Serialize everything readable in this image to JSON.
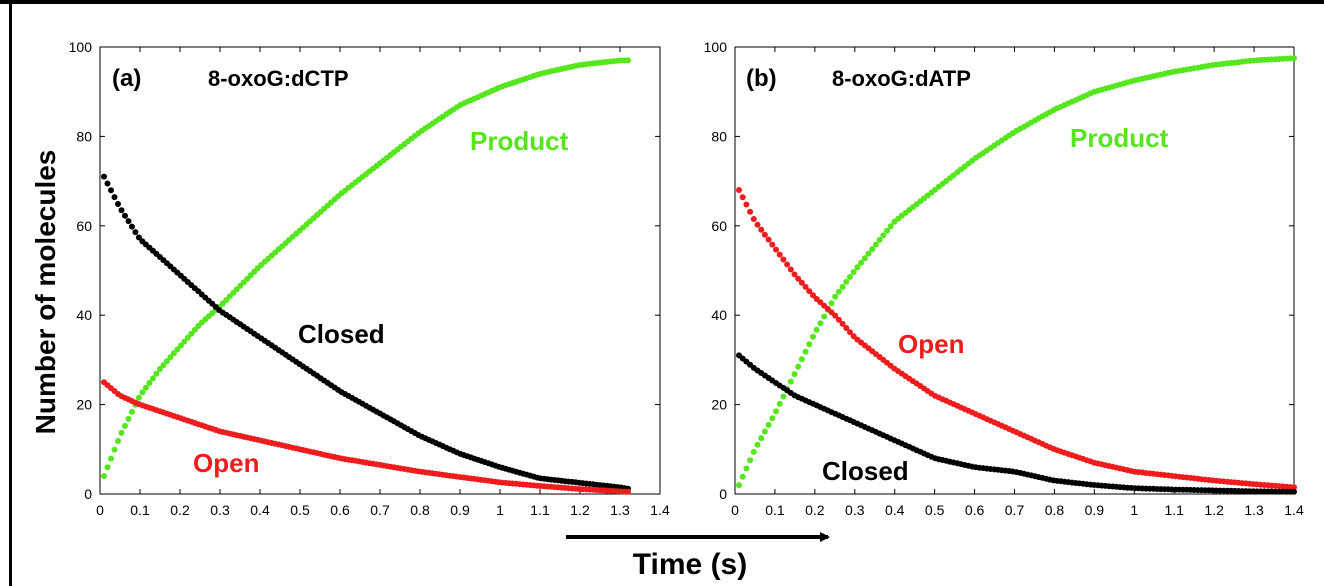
{
  "figure": {
    "ylabel": "Number of molecules",
    "xlabel": "Time (s)"
  },
  "chart_data": [
    {
      "type": "scatter",
      "panel": "(a)",
      "title": "8-oxoG:dCTP",
      "xlim": [
        0,
        1.4
      ],
      "ylim": [
        0,
        100
      ],
      "xticks": [
        "0",
        "0.1",
        "0.2",
        "0.3",
        "0.4",
        "0.5",
        "0.6",
        "0.7",
        "0.8",
        "0.9",
        "1",
        "1.1",
        "1.2",
        "1.3",
        "1.4"
      ],
      "yticks": [
        "0",
        "20",
        "40",
        "60",
        "80",
        "100"
      ],
      "grid": false,
      "series": [
        {
          "name": "Product",
          "color": "#55e61e",
          "x": [
            0.01,
            0.05,
            0.1,
            0.15,
            0.2,
            0.25,
            0.3,
            0.4,
            0.5,
            0.6,
            0.7,
            0.8,
            0.9,
            1.0,
            1.1,
            1.2,
            1.3,
            1.32
          ],
          "y": [
            4,
            13,
            22,
            28,
            33,
            38,
            42,
            51,
            59,
            67,
            74,
            81,
            87,
            91,
            94,
            96,
            97,
            97
          ]
        },
        {
          "name": "Closed",
          "color": "#000000",
          "x": [
            0.01,
            0.05,
            0.1,
            0.15,
            0.2,
            0.25,
            0.3,
            0.4,
            0.5,
            0.6,
            0.7,
            0.8,
            0.9,
            1.0,
            1.1,
            1.2,
            1.3,
            1.32
          ],
          "y": [
            71,
            64,
            57,
            53,
            49,
            45,
            41,
            35,
            29,
            23,
            18,
            13,
            9,
            6,
            3.5,
            2.5,
            1.5,
            1.2
          ]
        },
        {
          "name": "Open",
          "color": "#ee1c1c",
          "x": [
            0.01,
            0.05,
            0.1,
            0.15,
            0.2,
            0.25,
            0.3,
            0.4,
            0.5,
            0.6,
            0.7,
            0.8,
            0.9,
            1.0,
            1.1,
            1.2,
            1.3,
            1.32
          ],
          "y": [
            25,
            22,
            20,
            18.5,
            17,
            15.5,
            14,
            12,
            10,
            8,
            6.5,
            5,
            3.8,
            2.6,
            1.8,
            1.1,
            0.6,
            0.5
          ]
        }
      ],
      "labels": [
        {
          "text": "Product",
          "color": "#55e61e"
        },
        {
          "text": "Closed",
          "color": "#000000"
        },
        {
          "text": "Open",
          "color": "#ee1c1c"
        }
      ]
    },
    {
      "type": "scatter",
      "panel": "(b)",
      "title": "8-oxoG:dATP",
      "xlim": [
        0,
        1.4
      ],
      "ylim": [
        0,
        100
      ],
      "xticks": [
        "0",
        "0.1",
        "0.2",
        "0.3",
        "0.4",
        "0.5",
        "0.6",
        "0.7",
        "0.8",
        "0.9",
        "1",
        "1.1",
        "1.2",
        "1.3",
        "1.4"
      ],
      "yticks": [
        "0",
        "20",
        "40",
        "60",
        "80",
        "100"
      ],
      "grid": false,
      "series": [
        {
          "name": "Product",
          "color": "#55e61e",
          "x": [
            0.01,
            0.05,
            0.1,
            0.15,
            0.2,
            0.25,
            0.3,
            0.4,
            0.5,
            0.6,
            0.7,
            0.8,
            0.9,
            1.0,
            1.1,
            1.2,
            1.3,
            1.4
          ],
          "y": [
            2,
            10,
            18,
            27,
            36,
            44,
            50,
            61,
            68,
            75,
            81,
            86,
            90,
            92.5,
            94.5,
            96,
            97,
            97.5
          ]
        },
        {
          "name": "Open",
          "color": "#ee1c1c",
          "x": [
            0.01,
            0.05,
            0.1,
            0.15,
            0.2,
            0.25,
            0.3,
            0.4,
            0.5,
            0.6,
            0.7,
            0.8,
            0.9,
            1.0,
            1.1,
            1.2,
            1.3,
            1.4
          ],
          "y": [
            68,
            61,
            55,
            49,
            44,
            40,
            35,
            28,
            22,
            18,
            14,
            10,
            7,
            5,
            4,
            3,
            2.2,
            1.5
          ]
        },
        {
          "name": "Closed",
          "color": "#000000",
          "x": [
            0.01,
            0.05,
            0.1,
            0.15,
            0.2,
            0.25,
            0.3,
            0.4,
            0.5,
            0.6,
            0.7,
            0.8,
            0.9,
            1.0,
            1.1,
            1.2,
            1.3,
            1.4
          ],
          "y": [
            31,
            28,
            25,
            22,
            20,
            18,
            16,
            12,
            8,
            6,
            5,
            3,
            2,
            1.3,
            1,
            0.8,
            0.6,
            0.5
          ]
        }
      ],
      "labels": [
        {
          "text": "Product",
          "color": "#55e61e"
        },
        {
          "text": "Open",
          "color": "#ee1c1c"
        },
        {
          "text": "Closed",
          "color": "#000000"
        }
      ]
    }
  ]
}
